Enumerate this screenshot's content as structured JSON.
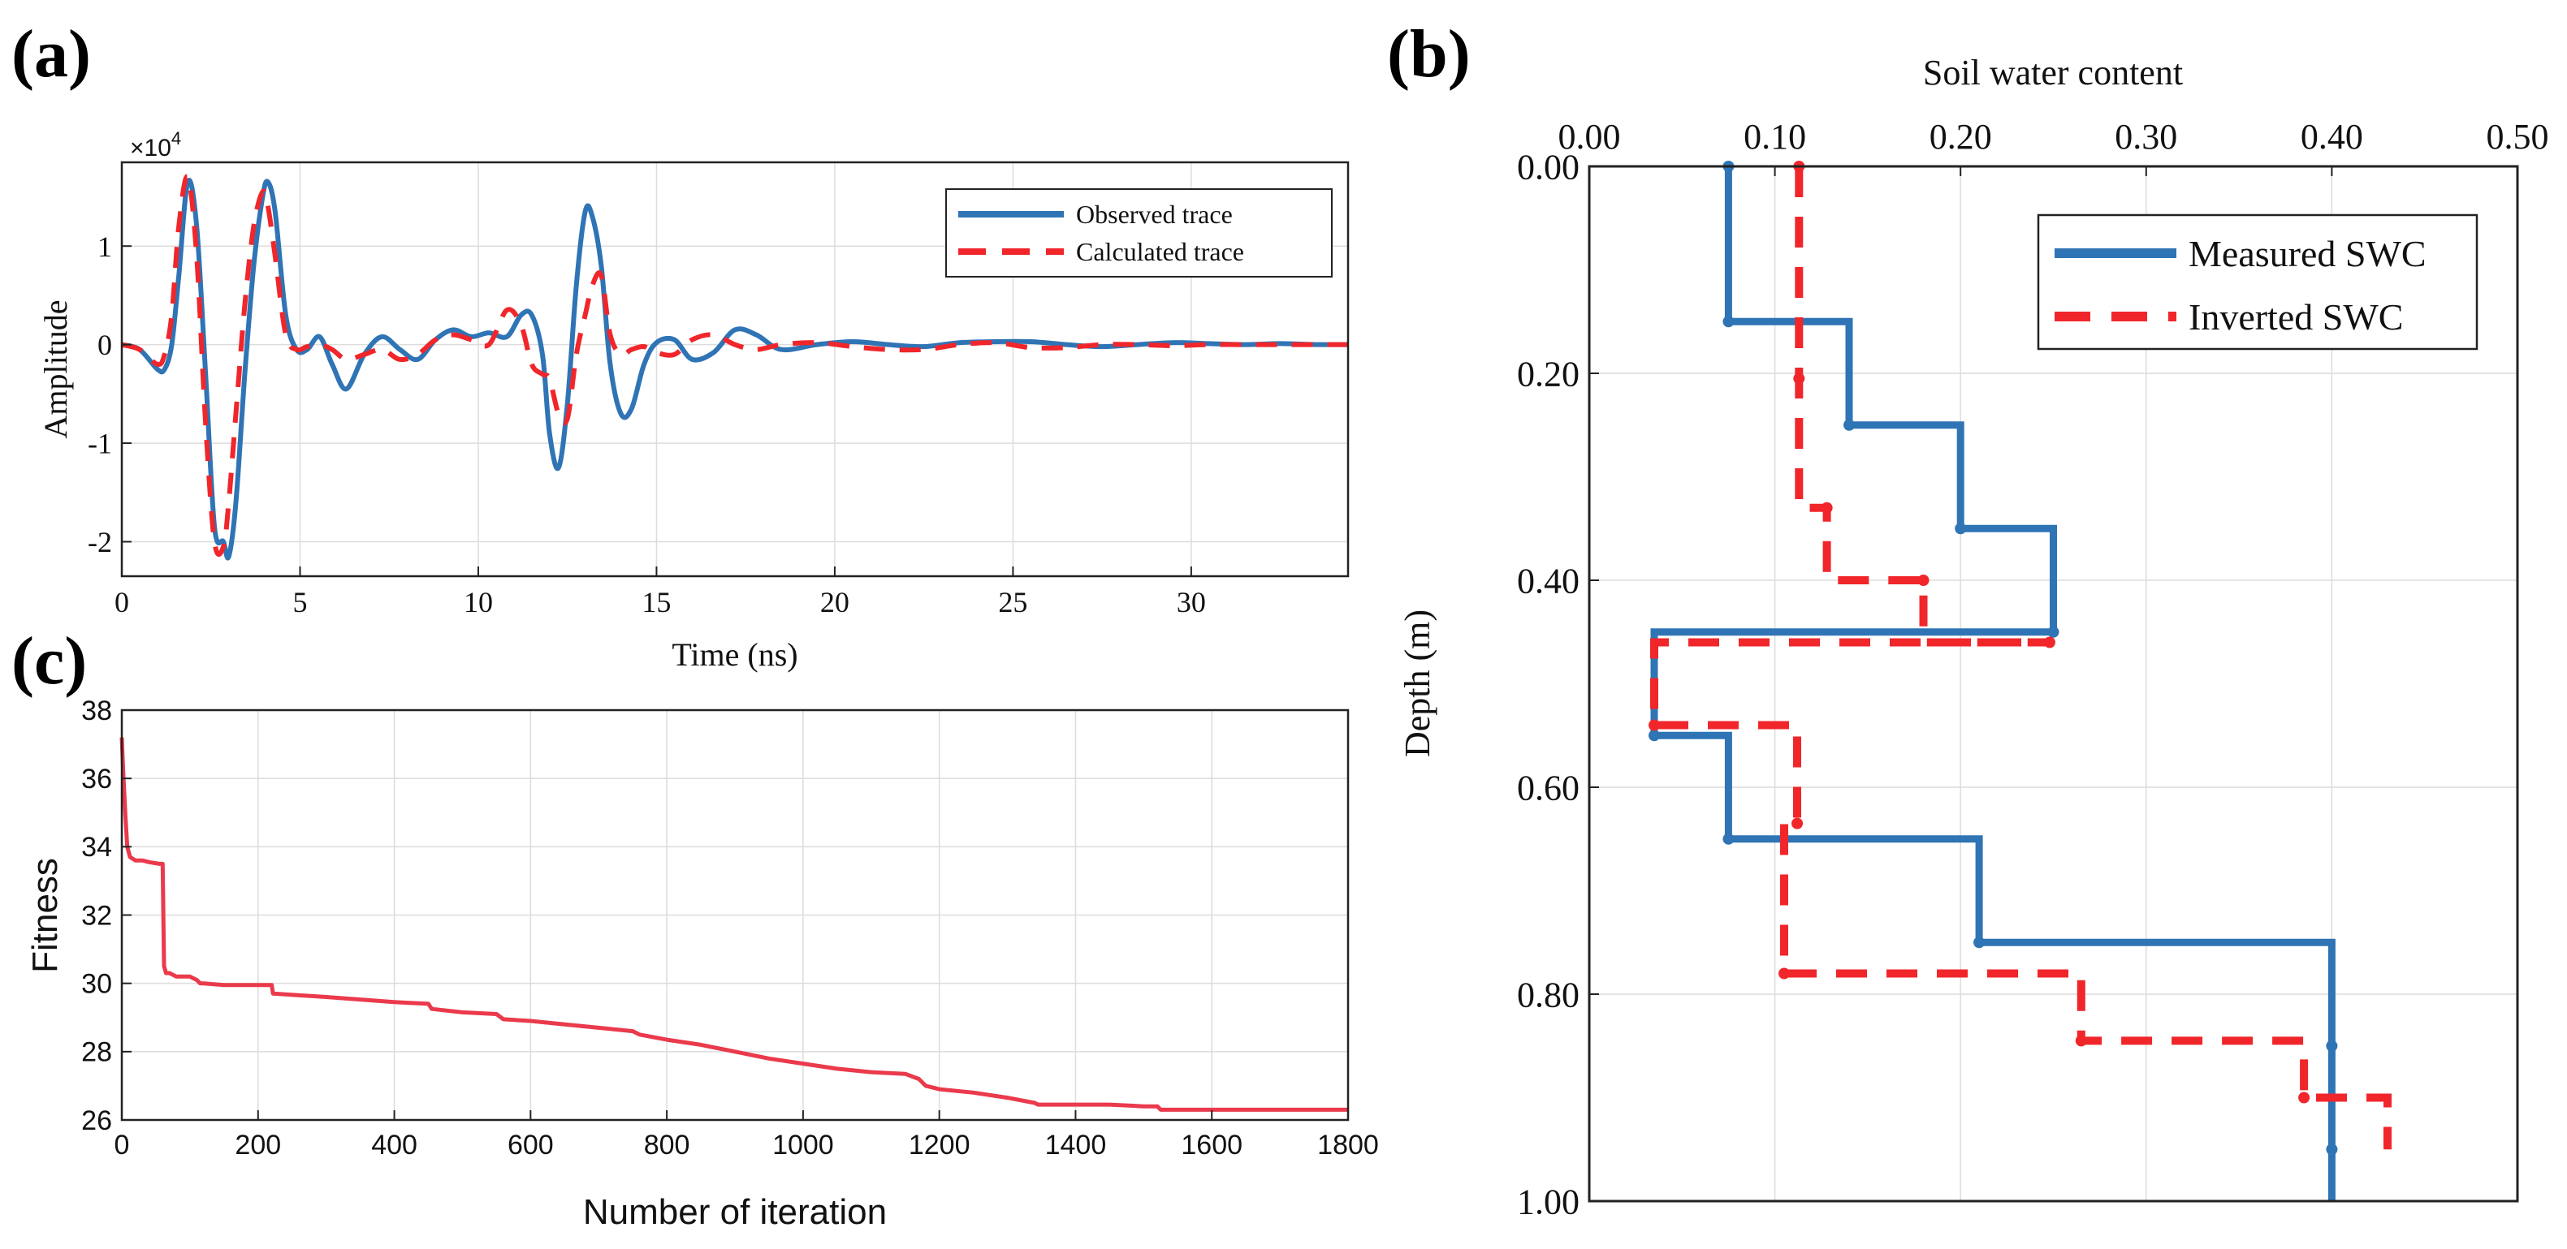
{
  "chart_data": [
    {
      "panel_label": "(a)",
      "type": "line",
      "title": "",
      "xlabel": "Time (ns)",
      "ylabel": "Amplitude",
      "exponent_label": "×10",
      "exponent_power": "4",
      "xlim": [
        0,
        34.4
      ],
      "ylim": [
        -2.35,
        1.85
      ],
      "xticks": [
        0,
        5,
        10,
        15,
        20,
        25,
        30
      ],
      "xtick_labels": [
        "0",
        "5",
        "10",
        "15",
        "20",
        "25",
        "30"
      ],
      "yticks": [
        -2,
        -1,
        0,
        1
      ],
      "ytick_labels": [
        "-2",
        "-1",
        "0",
        "1"
      ],
      "grid": true,
      "legend_position": "top-right",
      "series": [
        {
          "name": "Observed trace",
          "color": "#2f74b5",
          "style": "solid",
          "x": [
            0,
            0.5,
            1.0,
            1.2,
            1.4,
            1.6,
            1.85,
            2.1,
            2.35,
            2.6,
            2.85,
            3.0,
            3.2,
            3.45,
            3.7,
            3.95,
            4.1,
            4.3,
            4.6,
            4.9,
            5.2,
            5.55,
            5.9,
            6.3,
            6.8,
            7.3,
            7.8,
            8.3,
            8.8,
            9.3,
            9.8,
            10.3,
            10.8,
            11.2,
            11.5,
            11.8,
            12.0,
            12.25,
            12.5,
            12.75,
            13.0,
            13.2,
            13.45,
            13.7,
            14.0,
            14.3,
            14.65,
            15.0,
            15.5,
            16.0,
            16.6,
            17.2,
            17.8,
            18.5,
            19.5,
            20.5,
            21.5,
            22.5,
            23.5,
            24.5,
            25.5,
            26.5,
            27.5,
            28.5,
            29.5,
            30.5,
            31.5,
            32.5,
            33.5,
            34.4
          ],
          "y": [
            0,
            -0.05,
            -0.25,
            -0.25,
            0,
            0.7,
            1.65,
            1.2,
            -0.3,
            -1.85,
            -2.0,
            -2.15,
            -1.6,
            -0.3,
            0.8,
            1.5,
            1.65,
            1.35,
            0.3,
            -0.05,
            -0.05,
            0.08,
            -0.2,
            -0.45,
            -0.1,
            0.08,
            -0.05,
            -0.15,
            0.05,
            0.15,
            0.08,
            0.12,
            0.08,
            0.3,
            0.3,
            -0.1,
            -0.9,
            -1.25,
            -0.6,
            0.6,
            1.35,
            1.3,
            0.8,
            -0.2,
            -0.7,
            -0.65,
            -0.2,
            0.02,
            0.05,
            -0.15,
            -0.08,
            0.15,
            0.1,
            -0.05,
            0.0,
            0.03,
            0.0,
            -0.02,
            0.02,
            0.03,
            0.03,
            0.0,
            -0.02,
            0.0,
            0.02,
            0.01,
            0.0,
            0.01,
            0.0,
            0.0
          ]
        },
        {
          "name": "Calculated trace",
          "color": "#f0262b",
          "style": "dashed",
          "x": [
            0,
            0.5,
            1.0,
            1.2,
            1.4,
            1.6,
            1.85,
            2.1,
            2.35,
            2.6,
            2.85,
            3.0,
            3.2,
            3.45,
            3.7,
            3.95,
            4.1,
            4.3,
            4.6,
            4.9,
            5.2,
            5.55,
            5.9,
            6.3,
            6.8,
            7.3,
            7.8,
            8.3,
            8.8,
            9.3,
            9.8,
            10.3,
            10.8,
            11.2,
            11.5,
            11.8,
            12.0,
            12.25,
            12.5,
            12.75,
            13.0,
            13.2,
            13.45,
            13.7,
            14.0,
            14.3,
            14.65,
            15.0,
            15.5,
            16.0,
            16.6,
            17.2,
            17.8,
            18.5,
            19.5,
            20.5,
            21.5,
            22.5,
            23.5,
            24.5,
            25.5,
            26.5,
            27.5,
            28.5,
            29.5,
            30.5,
            31.5,
            32.5,
            33.5,
            34.4
          ],
          "y": [
            0,
            -0.05,
            -0.2,
            -0.1,
            0.3,
            1.2,
            1.7,
            0.9,
            -0.8,
            -2.0,
            -2.05,
            -1.6,
            -0.7,
            0.4,
            1.2,
            1.55,
            1.4,
            0.9,
            0.1,
            -0.05,
            -0.02,
            0.0,
            -0.05,
            -0.15,
            -0.1,
            -0.05,
            -0.15,
            -0.1,
            0.05,
            0.1,
            0.05,
            0.0,
            0.35,
            0.2,
            -0.2,
            -0.3,
            -0.35,
            -0.7,
            -0.75,
            -0.1,
            0.3,
            0.6,
            0.7,
            0.1,
            -0.1,
            -0.05,
            -0.02,
            -0.08,
            -0.1,
            0.05,
            0.1,
            0.0,
            -0.05,
            0.0,
            0.02,
            -0.02,
            -0.05,
            -0.05,
            0.0,
            0.02,
            -0.03,
            -0.03,
            0.0,
            0.0,
            -0.01,
            0.0,
            0.0,
            0.0,
            0.0,
            0.0
          ]
        }
      ]
    },
    {
      "panel_label": "(b)",
      "type": "line",
      "title": "Soil water content",
      "xlabel": "Soil water content",
      "ylabel": "Depth (m)",
      "xlim": [
        0,
        0.5
      ],
      "ylim": [
        0,
        1.0
      ],
      "y_reversed": true,
      "x_axis_position": "top",
      "xticks": [
        0,
        0.1,
        0.2,
        0.3,
        0.4,
        0.5
      ],
      "xtick_labels": [
        "0.00",
        "0.10",
        "0.20",
        "0.30",
        "0.40",
        "0.50"
      ],
      "yticks": [
        0,
        0.2,
        0.4,
        0.6,
        0.8,
        1.0
      ],
      "ytick_labels": [
        "0.00",
        "0.20",
        "0.40",
        "0.60",
        "0.80",
        "1.00"
      ],
      "grid": true,
      "legend_position": "top-right",
      "series": [
        {
          "name": "Measured SWC",
          "color": "#2f74b5",
          "style": "solid",
          "x": [
            0.075,
            0.075,
            0.14,
            0.14,
            0.2,
            0.2,
            0.25,
            0.25,
            0.035,
            0.035,
            0.075,
            0.075,
            0.21,
            0.21,
            0.4,
            0.4,
            0.4,
            0.4
          ],
          "y": [
            0.0,
            0.15,
            0.15,
            0.25,
            0.25,
            0.35,
            0.35,
            0.45,
            0.45,
            0.55,
            0.55,
            0.65,
            0.65,
            0.75,
            0.75,
            0.85,
            0.95,
            1.0
          ],
          "markers_x": [
            0.075,
            0.075,
            0.14,
            0.2,
            0.25,
            0.035,
            0.075,
            0.21,
            0.4,
            0.4
          ],
          "markers_y": [
            0.0,
            0.15,
            0.25,
            0.35,
            0.45,
            0.55,
            0.65,
            0.75,
            0.85,
            0.95
          ]
        },
        {
          "name": "Inverted SWC",
          "color": "#f0262b",
          "style": "dashed",
          "x": [
            0.113,
            0.113,
            0.128,
            0.128,
            0.18,
            0.18,
            0.248,
            0.248,
            0.035,
            0.035,
            0.112,
            0.112,
            0.105,
            0.105,
            0.265,
            0.265,
            0.385,
            0.385,
            0.43,
            0.43
          ],
          "y": [
            0.0,
            0.33,
            0.33,
            0.4,
            0.4,
            0.46,
            0.46,
            0.46,
            0.46,
            0.54,
            0.54,
            0.635,
            0.635,
            0.78,
            0.78,
            0.845,
            0.845,
            0.9,
            0.9,
            0.95
          ],
          "markers_x": [
            0.113,
            0.113,
            0.128,
            0.18,
            0.248,
            0.035,
            0.112,
            0.105,
            0.265,
            0.385
          ],
          "markers_y": [
            0.0,
            0.205,
            0.33,
            0.4,
            0.46,
            0.54,
            0.635,
            0.78,
            0.845,
            0.9
          ]
        }
      ]
    },
    {
      "panel_label": "(c)",
      "type": "line",
      "title": "",
      "xlabel": "Number of iteration",
      "ylabel": "Fitness",
      "xlim": [
        0,
        1800
      ],
      "ylim": [
        26,
        38
      ],
      "xticks": [
        0,
        200,
        400,
        600,
        800,
        1000,
        1200,
        1400,
        1600,
        1800
      ],
      "xtick_labels": [
        "0",
        "200",
        "400",
        "600",
        "800",
        "1000",
        "1200",
        "1400",
        "1600",
        "1800"
      ],
      "yticks": [
        26,
        28,
        30,
        32,
        34,
        36,
        38
      ],
      "ytick_labels": [
        "26",
        "28",
        "30",
        "32",
        "34",
        "36",
        "38"
      ],
      "grid": true,
      "series": [
        {
          "name": "Fitness",
          "color": "#ea3a4c",
          "style": "solid",
          "x": [
            0,
            2,
            5,
            8,
            12,
            20,
            30,
            40,
            55,
            60,
            62,
            65,
            70,
            80,
            90,
            100,
            110,
            115,
            120,
            150,
            200,
            220,
            222,
            300,
            400,
            450,
            455,
            500,
            550,
            560,
            600,
            650,
            700,
            750,
            760,
            800,
            850,
            900,
            950,
            1000,
            1050,
            1100,
            1150,
            1170,
            1180,
            1200,
            1250,
            1300,
            1340,
            1345,
            1400,
            1450,
            1500,
            1520,
            1525,
            1600,
            1700,
            1800
          ],
          "y": [
            37.2,
            36.2,
            35.0,
            34.0,
            33.7,
            33.6,
            33.6,
            33.55,
            33.5,
            33.5,
            30.5,
            30.3,
            30.3,
            30.2,
            30.2,
            30.2,
            30.1,
            30.0,
            30.0,
            29.95,
            29.95,
            29.95,
            29.7,
            29.6,
            29.45,
            29.4,
            29.25,
            29.15,
            29.1,
            28.95,
            28.9,
            28.8,
            28.7,
            28.6,
            28.5,
            28.35,
            28.2,
            28.0,
            27.8,
            27.65,
            27.5,
            27.4,
            27.35,
            27.2,
            27.0,
            26.9,
            26.8,
            26.65,
            26.5,
            26.45,
            26.45,
            26.45,
            26.4,
            26.4,
            26.3,
            26.3,
            26.3,
            26.3
          ]
        }
      ]
    }
  ]
}
